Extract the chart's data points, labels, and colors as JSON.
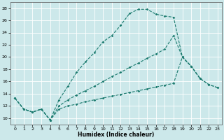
{
  "xlabel": "Humidex (Indice chaleur)",
  "bg_color": "#cce8ea",
  "grid_color": "#aad4d8",
  "line_color": "#1a7a6e",
  "xlim": [
    -0.5,
    23.5
  ],
  "ylim": [
    9,
    29
  ],
  "yticks": [
    10,
    12,
    14,
    16,
    18,
    20,
    22,
    24,
    26,
    28
  ],
  "xticks": [
    0,
    1,
    2,
    3,
    4,
    5,
    6,
    7,
    8,
    9,
    10,
    11,
    12,
    13,
    14,
    15,
    16,
    17,
    18,
    19,
    20,
    21,
    22,
    23
  ],
  "line1": {
    "x": [
      0,
      1,
      2,
      3,
      4,
      5,
      6,
      7,
      8,
      9,
      10,
      11,
      12,
      13,
      14,
      15,
      16,
      17,
      18,
      19,
      20,
      21
    ],
    "y": [
      13.3,
      11.5,
      11.0,
      11.5,
      9.7,
      13.0,
      15.2,
      17.5,
      19.2,
      20.7,
      22.5,
      23.5,
      25.2,
      27.1,
      27.8,
      27.8,
      27.0,
      26.7,
      26.5,
      20.0,
      18.5,
      16.5
    ]
  },
  "line2": {
    "x": [
      0,
      1,
      2,
      3,
      4,
      5,
      6,
      7,
      8,
      9,
      10,
      11,
      12,
      13,
      14,
      15,
      16,
      17,
      18,
      19,
      20,
      21,
      22,
      23
    ],
    "y": [
      13.3,
      11.5,
      11.0,
      11.5,
      9.7,
      12.0,
      13.0,
      13.8,
      14.5,
      15.2,
      16.0,
      16.8,
      17.5,
      18.3,
      19.0,
      19.8,
      20.5,
      21.3,
      23.5,
      20.0,
      18.5,
      16.5,
      15.5,
      15.0
    ]
  },
  "line3": {
    "x": [
      0,
      1,
      2,
      3,
      4,
      5,
      6,
      7,
      8,
      9,
      10,
      11,
      12,
      13,
      14,
      15,
      16,
      17,
      18,
      19,
      20,
      21,
      22,
      23
    ],
    "y": [
      13.3,
      11.5,
      11.0,
      11.5,
      9.7,
      11.5,
      12.0,
      12.3,
      12.7,
      13.0,
      13.3,
      13.6,
      13.9,
      14.2,
      14.5,
      14.8,
      15.1,
      15.4,
      15.7,
      20.0,
      18.5,
      16.5,
      15.5,
      15.0
    ]
  }
}
